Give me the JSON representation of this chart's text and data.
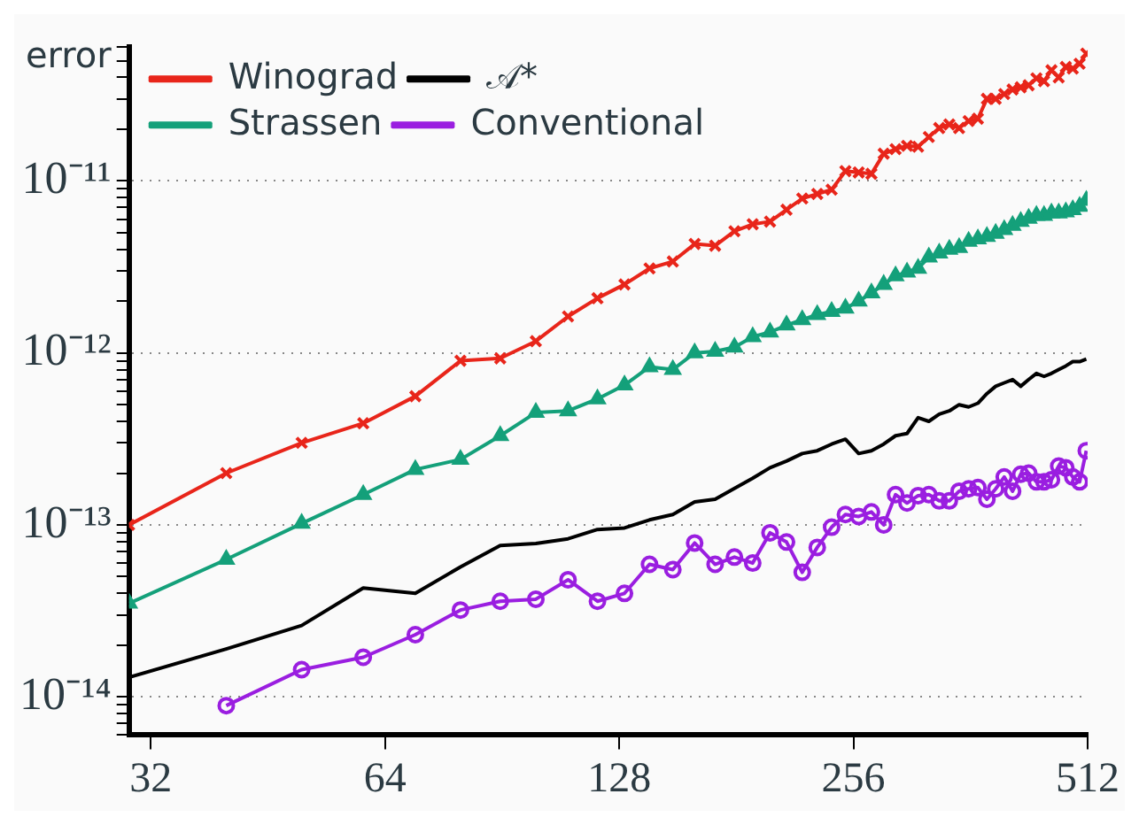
{
  "chart_data": {
    "type": "line",
    "ylabel": "error",
    "log": "xy",
    "grid": "y",
    "legend": "top left",
    "line_style": "solid",
    "x": [
      30,
      40,
      50,
      60,
      70,
      80,
      90,
      100,
      110,
      120,
      130,
      140,
      150,
      160,
      170,
      180,
      190,
      200,
      210,
      220,
      230,
      240,
      250,
      260,
      270,
      280,
      290,
      300,
      310,
      320,
      330,
      340,
      350,
      360,
      370,
      380,
      390,
      400,
      410,
      420,
      430,
      440,
      450,
      460,
      470,
      480,
      490,
      500,
      510
    ],
    "xlim": [
      30,
      512
    ],
    "xticks": [
      32,
      64,
      128,
      256,
      512
    ],
    "ylim": [
      6e-15,
      6e-11
    ],
    "yticks": [
      {
        "value": 6e-15,
        "label": null
      },
      {
        "value": 7e-15,
        "label": null
      },
      {
        "value": 8e-15,
        "label": null
      },
      {
        "value": 9e-15,
        "label": null
      },
      {
        "value": 1e-14,
        "label": "10⁻¹⁴"
      },
      {
        "value": 2e-14,
        "label": null
      },
      {
        "value": 3e-14,
        "label": null
      },
      {
        "value": 4e-14,
        "label": null
      },
      {
        "value": 5e-14,
        "label": null
      },
      {
        "value": 6e-14,
        "label": null
      },
      {
        "value": 7e-14,
        "label": null
      },
      {
        "value": 8e-14,
        "label": null
      },
      {
        "value": 9e-14,
        "label": null
      },
      {
        "value": 1e-13,
        "label": "10⁻¹³"
      },
      {
        "value": 2e-13,
        "label": null
      },
      {
        "value": 3e-13,
        "label": null
      },
      {
        "value": 4e-13,
        "label": null
      },
      {
        "value": 5e-13,
        "label": null
      },
      {
        "value": 6e-13,
        "label": null
      },
      {
        "value": 7e-13,
        "label": null
      },
      {
        "value": 8e-13,
        "label": null
      },
      {
        "value": 9e-13,
        "label": null
      },
      {
        "value": 1e-12,
        "label": "10⁻¹²"
      },
      {
        "value": 2e-12,
        "label": null
      },
      {
        "value": 3e-12,
        "label": null
      },
      {
        "value": 4e-12,
        "label": null
      },
      {
        "value": 5e-12,
        "label": null
      },
      {
        "value": 6e-12,
        "label": null
      },
      {
        "value": 7e-12,
        "label": null
      },
      {
        "value": 8e-12,
        "label": null
      },
      {
        "value": 9e-12,
        "label": null
      },
      {
        "value": 1e-11,
        "label": "10⁻¹¹"
      },
      {
        "value": 2e-11,
        "label": null
      },
      {
        "value": 3e-11,
        "label": null
      },
      {
        "value": 4e-11,
        "label": null
      },
      {
        "value": 5e-11,
        "label": null
      },
      {
        "value": 6e-11,
        "label": null
      }
    ],
    "series": [
      {
        "name": "Winograd",
        "color": "#e8251a",
        "marker": "cross",
        "values": [
          1e-13,
          2e-13,
          3e-13,
          3.9e-13,
          5.6e-13,
          9e-13,
          9.3e-13,
          1.17e-12,
          1.63e-12,
          2.08e-12,
          2.5e-12,
          3.1e-12,
          3.4e-12,
          4.3e-12,
          4.2e-12,
          5.1e-12,
          5.6e-12,
          5.8e-12,
          6.8e-12,
          7.9e-12,
          8.4e-12,
          8.9e-12,
          1.14e-11,
          1.12e-11,
          1.1e-11,
          1.44e-11,
          1.53e-11,
          1.6e-11,
          1.58e-11,
          1.8e-11,
          2.03e-11,
          2.13e-11,
          2.03e-11,
          2.23e-11,
          2.3e-11,
          3e-11,
          3e-11,
          3.2e-11,
          3.4e-11,
          3.5e-11,
          3.6e-11,
          3.95e-11,
          3.8e-11,
          4.4e-11,
          4e-11,
          4.6e-11,
          4.5e-11,
          4.8e-11,
          5.5e-11
        ]
      },
      {
        "name": "𝒜*",
        "color": "#000000",
        "marker": "none",
        "values": [
          1.3e-14,
          1.9e-14,
          2.6e-14,
          4.3e-14,
          4e-14,
          5.7e-14,
          7.6e-14,
          7.8e-14,
          8.3e-14,
          9.4e-14,
          9.6e-14,
          1.07e-13,
          1.15e-13,
          1.36e-13,
          1.41e-13,
          1.63e-13,
          1.87e-13,
          2.15e-13,
          2.35e-13,
          2.6e-13,
          2.7e-13,
          2.95e-13,
          3.15e-13,
          2.6e-13,
          2.7e-13,
          2.95e-13,
          3.3e-13,
          3.4e-13,
          4.2e-13,
          4e-13,
          4.4e-13,
          4.6e-13,
          5e-13,
          4.85e-13,
          5.1e-13,
          5.8e-13,
          6.4e-13,
          6.7e-13,
          7e-13,
          6.4e-13,
          7e-13,
          7.6e-13,
          7.3e-13,
          7.6e-13,
          8e-13,
          8.4e-13,
          8.9e-13,
          8.9e-13,
          9.2e-13
        ]
      },
      {
        "name": "Strassen",
        "color": "#14a07a",
        "marker": "triangle",
        "values": [
          3.5e-14,
          6.3e-14,
          1.02e-13,
          1.5e-13,
          2.1e-13,
          2.4e-13,
          3.3e-13,
          4.5e-13,
          4.6e-13,
          5.4e-13,
          6.5e-13,
          8.3e-13,
          8e-13,
          1e-12,
          1.02e-12,
          1.08e-12,
          1.24e-12,
          1.32e-12,
          1.45e-12,
          1.56e-12,
          1.67e-12,
          1.74e-12,
          1.82e-12,
          2e-12,
          2.23e-12,
          2.5e-12,
          2.8e-12,
          2.95e-12,
          3.1e-12,
          3.6e-12,
          3.8e-12,
          4e-12,
          4.1e-12,
          4.45e-12,
          4.6e-12,
          4.75e-12,
          4.95e-12,
          5.2e-12,
          5.5e-12,
          5.8e-12,
          6.05e-12,
          6.3e-12,
          6.3e-12,
          6.5e-12,
          6.5e-12,
          6.6e-12,
          6.8e-12,
          7.1e-12,
          7.7e-12
        ]
      },
      {
        "name": "Conventional",
        "color": "#9a1ee0",
        "marker": "circle",
        "values": [
          null,
          8.9e-15,
          1.44e-14,
          1.7e-14,
          2.3e-14,
          3.2e-14,
          3.6e-14,
          3.7e-14,
          4.8e-14,
          3.6e-14,
          4e-14,
          5.9e-14,
          5.5e-14,
          7.85e-14,
          5.9e-14,
          6.5e-14,
          6e-14,
          9e-14,
          7.95e-14,
          5.3e-14,
          7.4e-14,
          9.7e-14,
          1.15e-13,
          1.12e-13,
          1.19e-13,
          1e-13,
          1.5e-13,
          1.34e-13,
          1.48e-13,
          1.5e-13,
          1.38e-13,
          1.38e-13,
          1.57e-13,
          1.62e-13,
          1.65e-13,
          1.41e-13,
          1.62e-13,
          1.9e-13,
          1.57e-13,
          1.97e-13,
          2e-13,
          1.78e-13,
          1.78e-13,
          1.83e-13,
          2.2e-13,
          2.15e-13,
          1.9e-13,
          1.78e-13,
          2.7e-13
        ]
      }
    ]
  }
}
